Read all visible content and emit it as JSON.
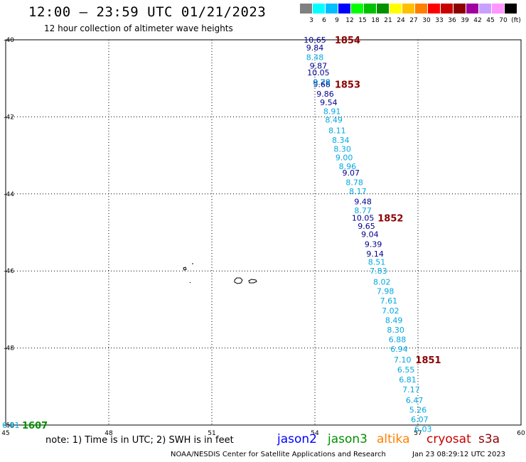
{
  "header": {
    "title": "12:00 – 23:59 UTC 01/21/2023",
    "subtitle": "12 hour collection of altimeter wave heights"
  },
  "scale": {
    "colors": [
      "#808080",
      "#00ffff",
      "#00bfff",
      "#0000ff",
      "#00ff00",
      "#00c000",
      "#009000",
      "#ffff00",
      "#ffc000",
      "#ff8000",
      "#ff0000",
      "#c80000",
      "#8c0000",
      "#a000a0",
      "#c8a0ff",
      "#ff96ff",
      "#000000"
    ],
    "labels": [
      "3",
      "6",
      "9",
      "12",
      "15",
      "18",
      "21",
      "24",
      "27",
      "30",
      "33",
      "36",
      "39",
      "42",
      "45",
      "70",
      "(ft)"
    ]
  },
  "map": {
    "lon_ticks": [
      "45",
      "48",
      "51",
      "54",
      "57",
      "60"
    ],
    "lat_ticks": [
      "-40",
      "-42",
      "-44",
      "-46",
      "-48",
      "-50"
    ],
    "tracks": [
      {
        "mission": "cryosat",
        "color": "#000090",
        "points": [
          {
            "lon": 54.0,
            "lat": -40.0,
            "v": "10.65"
          },
          {
            "lon": 54.0,
            "lat": -40.2,
            "v": "9.84"
          },
          {
            "lon": 54.1,
            "lat": -40.67,
            "v": "9.87"
          },
          {
            "lon": 54.1,
            "lat": -40.85,
            "v": "10.05"
          },
          {
            "lon": 54.2,
            "lat": -41.1,
            "v": "9.28"
          },
          {
            "lon": 54.2,
            "lat": -41.15,
            "v": "9.68"
          },
          {
            "lon": 54.3,
            "lat": -41.4,
            "v": "9.86"
          },
          {
            "lon": 54.4,
            "lat": -41.62,
            "v": "9.54"
          },
          {
            "lon": 55.05,
            "lat": -43.45,
            "v": "9.07"
          },
          {
            "lon": 55.4,
            "lat": -44.2,
            "v": "9.48"
          },
          {
            "lon": 55.4,
            "lat": -44.62,
            "v": "10.05"
          },
          {
            "lon": 55.5,
            "lat": -44.83,
            "v": "9.65"
          },
          {
            "lon": 55.6,
            "lat": -45.05,
            "v": "9.04"
          },
          {
            "lon": 55.7,
            "lat": -45.3,
            "v": "9.39"
          },
          {
            "lon": 55.75,
            "lat": -45.55,
            "v": "9.14"
          }
        ]
      },
      {
        "mission": "s3a",
        "color": "#00a8e0",
        "points": [
          {
            "lon": 54.0,
            "lat": -40.45,
            "v": "8.48"
          },
          {
            "lon": 54.2,
            "lat": -41.1,
            "v": "8.79"
          },
          {
            "lon": 54.5,
            "lat": -41.85,
            "v": "8.91"
          },
          {
            "lon": 54.55,
            "lat": -42.08,
            "v": "8.49"
          },
          {
            "lon": 54.65,
            "lat": -42.35,
            "v": "8.11"
          },
          {
            "lon": 54.75,
            "lat": -42.6,
            "v": "8.34"
          },
          {
            "lon": 54.8,
            "lat": -42.83,
            "v": "8.30"
          },
          {
            "lon": 54.85,
            "lat": -43.05,
            "v": "9.00"
          },
          {
            "lon": 54.95,
            "lat": -43.28,
            "v": "8.96"
          },
          {
            "lon": 55.15,
            "lat": -43.7,
            "v": "8.78"
          },
          {
            "lon": 55.25,
            "lat": -43.93,
            "v": "8.17"
          },
          {
            "lon": 55.4,
            "lat": -44.43,
            "v": "8.77"
          },
          {
            "lon": 55.8,
            "lat": -45.77,
            "v": "8.51"
          },
          {
            "lon": 55.85,
            "lat": -46.0,
            "v": "7.83"
          },
          {
            "lon": 55.95,
            "lat": -46.28,
            "v": "8.02"
          },
          {
            "lon": 56.05,
            "lat": -46.52,
            "v": "7.98"
          },
          {
            "lon": 56.15,
            "lat": -46.77,
            "v": "7.61"
          },
          {
            "lon": 56.2,
            "lat": -47.03,
            "v": "7.02"
          },
          {
            "lon": 56.3,
            "lat": -47.28,
            "v": "8.49"
          },
          {
            "lon": 56.35,
            "lat": -47.53,
            "v": "8.30"
          },
          {
            "lon": 56.4,
            "lat": -47.78,
            "v": "6.88"
          },
          {
            "lon": 56.45,
            "lat": -48.03,
            "v": "6.94"
          },
          {
            "lon": 56.55,
            "lat": -48.3,
            "v": "7.10"
          },
          {
            "lon": 56.65,
            "lat": -48.56,
            "v": "6.55"
          },
          {
            "lon": 56.7,
            "lat": -48.82,
            "v": "6.81"
          },
          {
            "lon": 56.8,
            "lat": -49.08,
            "v": "7.17"
          },
          {
            "lon": 56.9,
            "lat": -49.35,
            "v": "6.47"
          },
          {
            "lon": 57.0,
            "lat": -49.6,
            "v": "5.26"
          },
          {
            "lon": 57.05,
            "lat": -49.85,
            "v": "6.07"
          },
          {
            "lon": 57.15,
            "lat": -50.1,
            "v": "6.03"
          },
          {
            "lon": 45.15,
            "lat": -50.0,
            "v": "6.81"
          }
        ]
      }
    ],
    "time_labels": [
      {
        "lon": 54.95,
        "lat": -40.0,
        "t": "1854",
        "color": "#8c0000"
      },
      {
        "lon": 54.95,
        "lat": -41.15,
        "t": "1853",
        "color": "#8c0000"
      },
      {
        "lon": 56.2,
        "lat": -44.62,
        "t": "1852",
        "color": "#8c0000"
      },
      {
        "lon": 57.3,
        "lat": -48.3,
        "t": "1851",
        "color": "#8c0000"
      },
      {
        "lon": 45.85,
        "lat": -50.0,
        "t": "1607",
        "color": "#009000"
      }
    ]
  },
  "footer": {
    "note": "note:  1) Time is in UTC;  2) SWH is in feet",
    "missions": [
      {
        "name": "jason2",
        "color": "#0000ff"
      },
      {
        "name": "jason3",
        "color": "#009000"
      },
      {
        "name": "altika",
        "color": "#ff8000"
      },
      {
        "name": "cryosat",
        "color": "#c80000"
      },
      {
        "name": "s3a",
        "color": "#8c0000"
      }
    ],
    "credit": "NOAA/NESDIS Center for Satellite Applications and Research",
    "stamp": "Jan 23 08:29:12 UTC 2023"
  }
}
